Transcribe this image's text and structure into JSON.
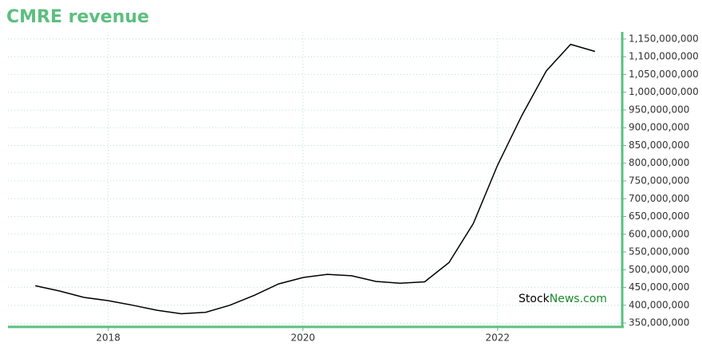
{
  "chart_data": {
    "type": "line",
    "title": "CMRE revenue",
    "watermark": [
      "Stock",
      "News",
      ".com"
    ],
    "x": [
      2017.25,
      2017.5,
      2017.75,
      2018,
      2018.25,
      2018.5,
      2018.75,
      2019,
      2019.25,
      2019.5,
      2019.75,
      2020,
      2020.25,
      2020.5,
      2020.75,
      2021,
      2021.25,
      2021.5,
      2021.75,
      2022,
      2022.25,
      2022.5,
      2022.75,
      2023
    ],
    "series": [
      {
        "name": "revenue",
        "color": "#000000",
        "values": [
          455000000,
          440000000,
          422000000,
          413000000,
          400000000,
          386000000,
          376000000,
          380000000,
          400000000,
          428000000,
          460000000,
          478000000,
          487000000,
          483000000,
          467000000,
          462000000,
          466000000,
          520000000,
          630000000,
          795000000,
          935000000,
          1060000000,
          1135000000,
          1115000000
        ]
      }
    ],
    "xlim": [
      2016.97,
      2023.28
    ],
    "xticks": [
      2018,
      2020,
      2022
    ],
    "ylim": [
      339000000,
      1170000000
    ],
    "yticks": [
      {
        "value": 350000000,
        "label": "350,000,000"
      },
      {
        "value": 400000000,
        "label": "400,000,000"
      },
      {
        "value": 450000000,
        "label": "450,000,000"
      },
      {
        "value": 500000000,
        "label": "500,000,000"
      },
      {
        "value": 550000000,
        "label": "550,000,000"
      },
      {
        "value": 600000000,
        "label": "600,000,000"
      },
      {
        "value": 650000000,
        "label": "650,000,000"
      },
      {
        "value": 700000000,
        "label": "700,000,000"
      },
      {
        "value": 750000000,
        "label": "750,000,000"
      },
      {
        "value": 800000000,
        "label": "800,000,000"
      },
      {
        "value": 850000000,
        "label": "850,000,000"
      },
      {
        "value": 900000000,
        "label": "900,000,000"
      },
      {
        "value": 950000000,
        "label": "950,000,000"
      },
      {
        "value": 1000000000,
        "label": "1,000,000,000"
      },
      {
        "value": 1050000000,
        "label": "1,050,000,000"
      },
      {
        "value": 1100000000,
        "label": "1,100,000,000"
      },
      {
        "value": 1150000000,
        "label": "1,150,000,000"
      }
    ],
    "grid": true,
    "y_axis_side": "right",
    "axis_color": "#5cbf7f"
  }
}
